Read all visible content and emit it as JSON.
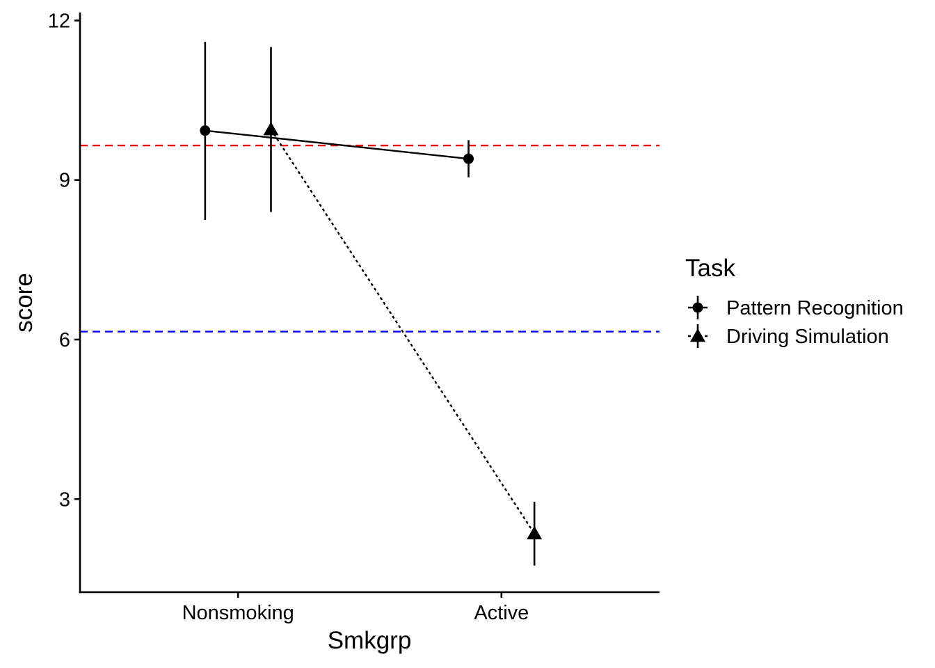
{
  "chart_data": {
    "type": "line",
    "xlabel": "Smkgrp",
    "ylabel": "score",
    "categories": [
      "Nonsmoking",
      "Active"
    ],
    "ylim": [
      1.25,
      12.15
    ],
    "yticks": [
      3,
      6,
      9,
      12
    ],
    "legend": {
      "title": "Task",
      "position": "right"
    },
    "series": [
      {
        "name": "Pattern Recognition",
        "marker": "circle",
        "linestyle": "solid",
        "dodge": -0.125,
        "values": [
          9.93,
          9.4
        ],
        "err_low": [
          8.25,
          9.05
        ],
        "err_high": [
          11.6,
          9.75
        ]
      },
      {
        "name": "Driving Simulation",
        "marker": "triangle",
        "linestyle": "dotted",
        "dodge": 0.125,
        "values": [
          9.95,
          2.35
        ],
        "err_low": [
          8.4,
          1.75
        ],
        "err_high": [
          11.5,
          2.95
        ]
      }
    ],
    "reference_lines": [
      {
        "y": 9.65,
        "color": "#ff0000",
        "linestyle": "dashed"
      },
      {
        "y": 6.15,
        "color": "#0000ff",
        "linestyle": "dashed"
      }
    ],
    "grid": false
  }
}
